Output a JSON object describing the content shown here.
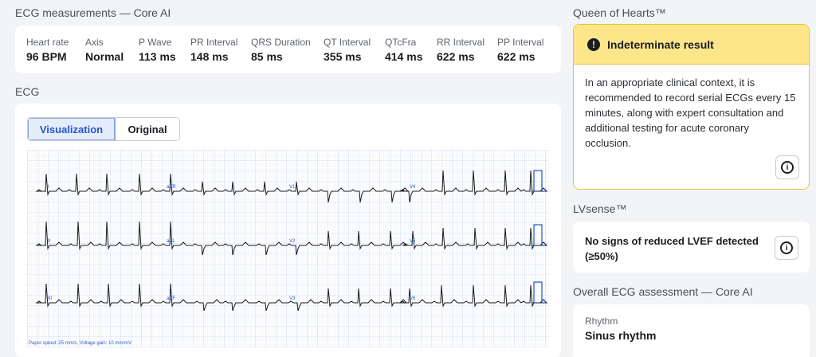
{
  "measurements": {
    "title": "ECG measurements — Core AI",
    "items": [
      {
        "label": "Heart rate",
        "value": "96 BPM"
      },
      {
        "label": "Axis",
        "value": "Normal"
      },
      {
        "label": "P Wave",
        "value": "113 ms"
      },
      {
        "label": "PR Interval",
        "value": "148 ms"
      },
      {
        "label": "QRS Duration",
        "value": "85 ms"
      },
      {
        "label": "QT Interval",
        "value": "355 ms"
      },
      {
        "label": "QTcFra",
        "value": "414 ms"
      },
      {
        "label": "RR Interval",
        "value": "622 ms"
      },
      {
        "label": "PP Interval",
        "value": "622 ms"
      }
    ]
  },
  "ecg": {
    "title": "ECG",
    "tabs": [
      {
        "label": "Visualization",
        "selected": true
      },
      {
        "label": "Original",
        "selected": false
      }
    ],
    "footnote": "Paper speed: 25 mm/s, Voltage gain: 10 mm/mV",
    "lead_labels": [
      "I",
      "aVR",
      "V1",
      "V4",
      "II",
      "aVL",
      "V2",
      "V5",
      "III",
      "aVF",
      "V3",
      "V6"
    ]
  },
  "queen_of_hearts": {
    "title": "Queen of Hearts™",
    "status": "Indeterminate result",
    "message": "In an appropriate clinical context, it is recommended to record serial ECGs every 15 minutes, along with expert consultation and additional testing for acute coronary occlusion."
  },
  "lvsense": {
    "title": "LVsense™",
    "result": "No signs of reduced LVEF detected (≥50%)"
  },
  "overall": {
    "title": "Overall ECG assessment — Core AI",
    "rhythm_label": "Rhythm",
    "rhythm_value": "Sinus rhythm"
  },
  "colors": {
    "accent": "#2557c7",
    "warning_bg": "#fde68a",
    "grid": "#b9c8ee",
    "trace": "#1a1a1a"
  }
}
